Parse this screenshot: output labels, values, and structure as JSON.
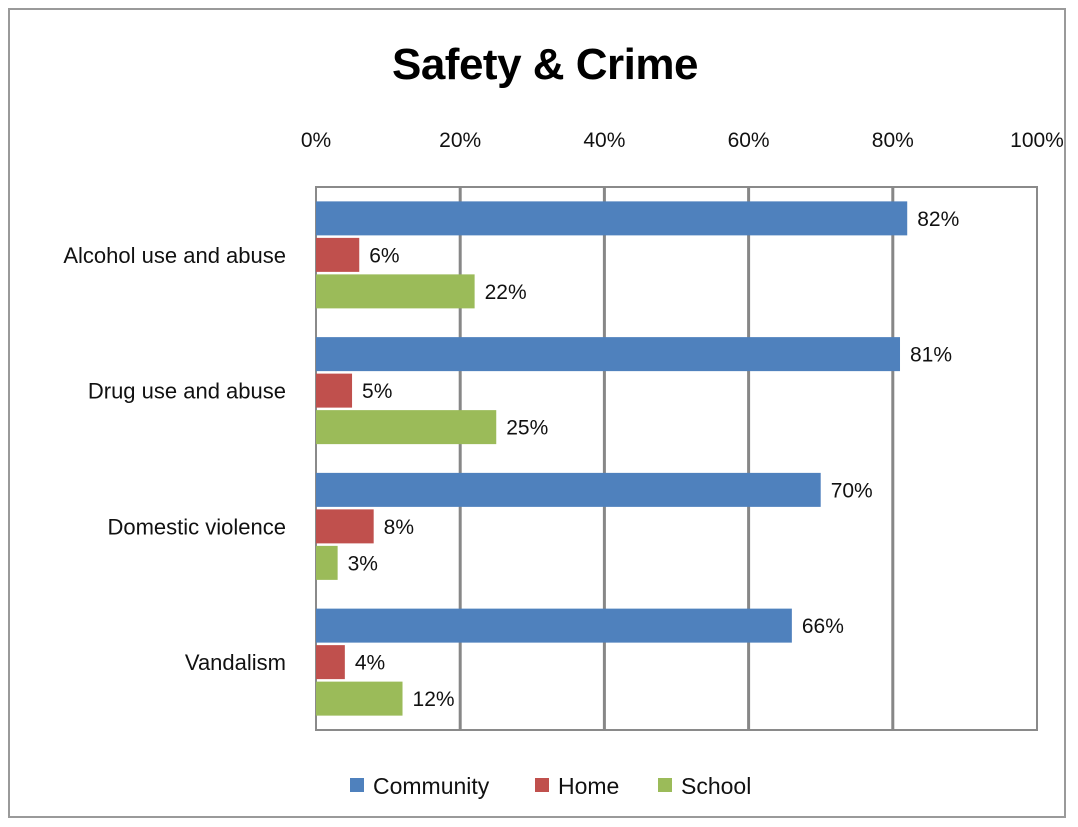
{
  "chart_data": {
    "type": "bar",
    "orientation": "horizontal",
    "title": "Safety & Crime",
    "categories": [
      "Alcohol use and abuse",
      "Drug use and abuse",
      "Domestic violence",
      "Vandalism"
    ],
    "series": [
      {
        "name": "Community",
        "values": [
          82,
          81,
          70,
          66
        ],
        "labels": [
          "82%",
          "81%",
          "70%",
          "66%"
        ],
        "color": "#4f81bd"
      },
      {
        "name": "Home",
        "values": [
          6,
          5,
          8,
          4
        ],
        "labels": [
          "6%",
          "5%",
          "8%",
          "4%"
        ],
        "color": "#c0504d"
      },
      {
        "name": "School",
        "values": [
          22,
          25,
          3,
          12
        ],
        "labels": [
          "22%",
          "25%",
          "3%",
          "12%"
        ],
        "color": "#9bbb59"
      }
    ],
    "x_ticks": [
      "0%",
      "20%",
      "40%",
      "60%",
      "80%",
      "100%"
    ],
    "xlim": [
      0,
      100
    ],
    "x_axis_position": "top",
    "grid": true,
    "legend_position": "bottom",
    "gridline_color": "#878787"
  }
}
